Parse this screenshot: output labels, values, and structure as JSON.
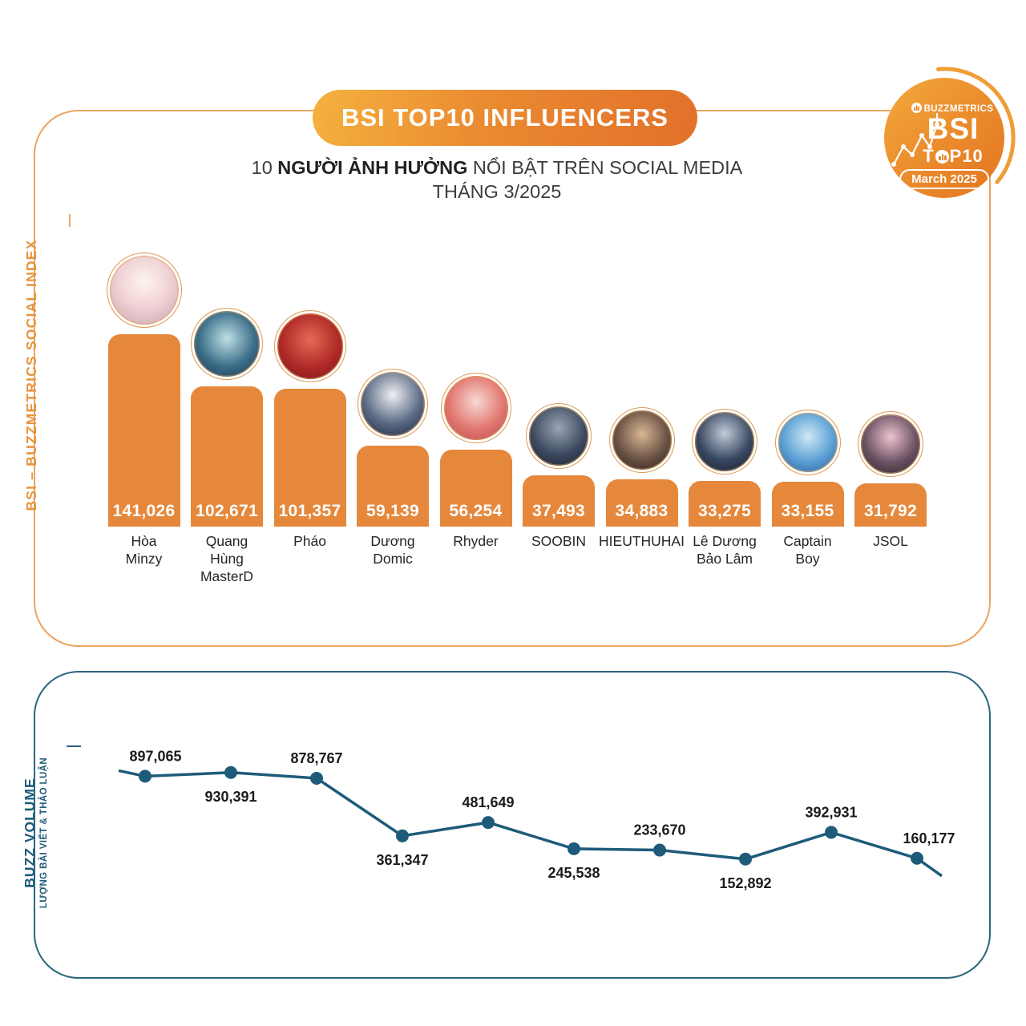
{
  "header": {
    "title": "BSI TOP10 INFLUENCERS",
    "subtitle_prefix": "10 ",
    "subtitle_bold": "NGƯỜI ẢNH HƯỞNG",
    "subtitle_rest": " NỔI BẬT TRÊN SOCIAL MEDIA",
    "subtitle_line2": "THÁNG 3/2025"
  },
  "logo": {
    "brand": "BUZZMETRICS",
    "bsi": "BSI",
    "top10_prefix": "T",
    "top10_suffix": "P10",
    "month": "March 2025"
  },
  "side_labels": {
    "bsi": "BSI – BUZZMETRICS SOCIAL INDEX",
    "buzz": "BUZZ VOLUME",
    "buzz_sub": "LƯỢNG BÀI VIẾT & THẢO LUẬN"
  },
  "colors": {
    "bar_orange": "#E5883C",
    "panel_orange_border": "#ECA45F",
    "pill_gradient_start": "#F4B13E",
    "pill_gradient_end": "#E2702A",
    "line_teal": "#1E5B7A",
    "panel_teal_border": "#2B657E",
    "label_dark": "#1B1B1B"
  },
  "chart_data": [
    {
      "type": "bar",
      "title": "BSI TOP10 INFLUENCERS — Tháng 3/2025",
      "categories": [
        "Hòa Minzy",
        "Quang Hùng MasterD",
        "Pháo",
        "Dương Domic",
        "Rhyder",
        "SOOBIN",
        "HIEUTHUHAI",
        "Lê Dương Bảo Lâm",
        "Captain Boy",
        "JSOL"
      ],
      "category_lines": [
        "Hòa\nMinzy",
        "Quang\nHùng\nMasterD",
        "Pháo",
        "Dương\nDomic",
        "Rhyder",
        "SOOBIN",
        "HIEUTHUHAI",
        "Lê Dương\nBảo Lâm",
        "Captain\nBoy",
        "JSOL"
      ],
      "values": [
        141026,
        102671,
        101357,
        59139,
        56254,
        37493,
        34883,
        33275,
        33155,
        31792
      ],
      "value_labels": [
        "141,026",
        "102,671",
        "101,357",
        "59,139",
        "56,254",
        "37,493",
        "34,883",
        "33,275",
        "33,155",
        "31,792"
      ],
      "bar_color": "#E5883C",
      "ylabel": "BSI – BUZZMETRICS SOCIAL INDEX",
      "ylim": [
        0,
        150000
      ],
      "grid": false,
      "legend": false
    },
    {
      "type": "line",
      "title": "BUZZ VOLUME — Lượng bài viết & thảo luận",
      "categories": [
        "Hòa Minzy",
        "Quang Hùng MasterD",
        "Pháo",
        "Dương Domic",
        "Rhyder",
        "SOOBIN",
        "HIEUTHUHAI",
        "Lê Dương Bảo Lâm",
        "Captain Boy",
        "JSOL"
      ],
      "values": [
        897065,
        930391,
        878767,
        361347,
        481649,
        245538,
        233670,
        152892,
        392931,
        160177
      ],
      "value_labels": [
        "897,065",
        "930,391",
        "878,767",
        "361,347",
        "481,649",
        "245,538",
        "233,670",
        "152,892",
        "392,931",
        "160,177"
      ],
      "label_position": [
        "above",
        "below",
        "above",
        "below",
        "above",
        "below",
        "above",
        "below",
        "above",
        "above"
      ],
      "line_color": "#1E5B7A",
      "ylabel": "BUZZ VOLUME – LƯỢNG BÀI VIẾT & THẢO LUẬN",
      "ylim": [
        0,
        1000000
      ],
      "grid": false,
      "legend": false
    }
  ]
}
